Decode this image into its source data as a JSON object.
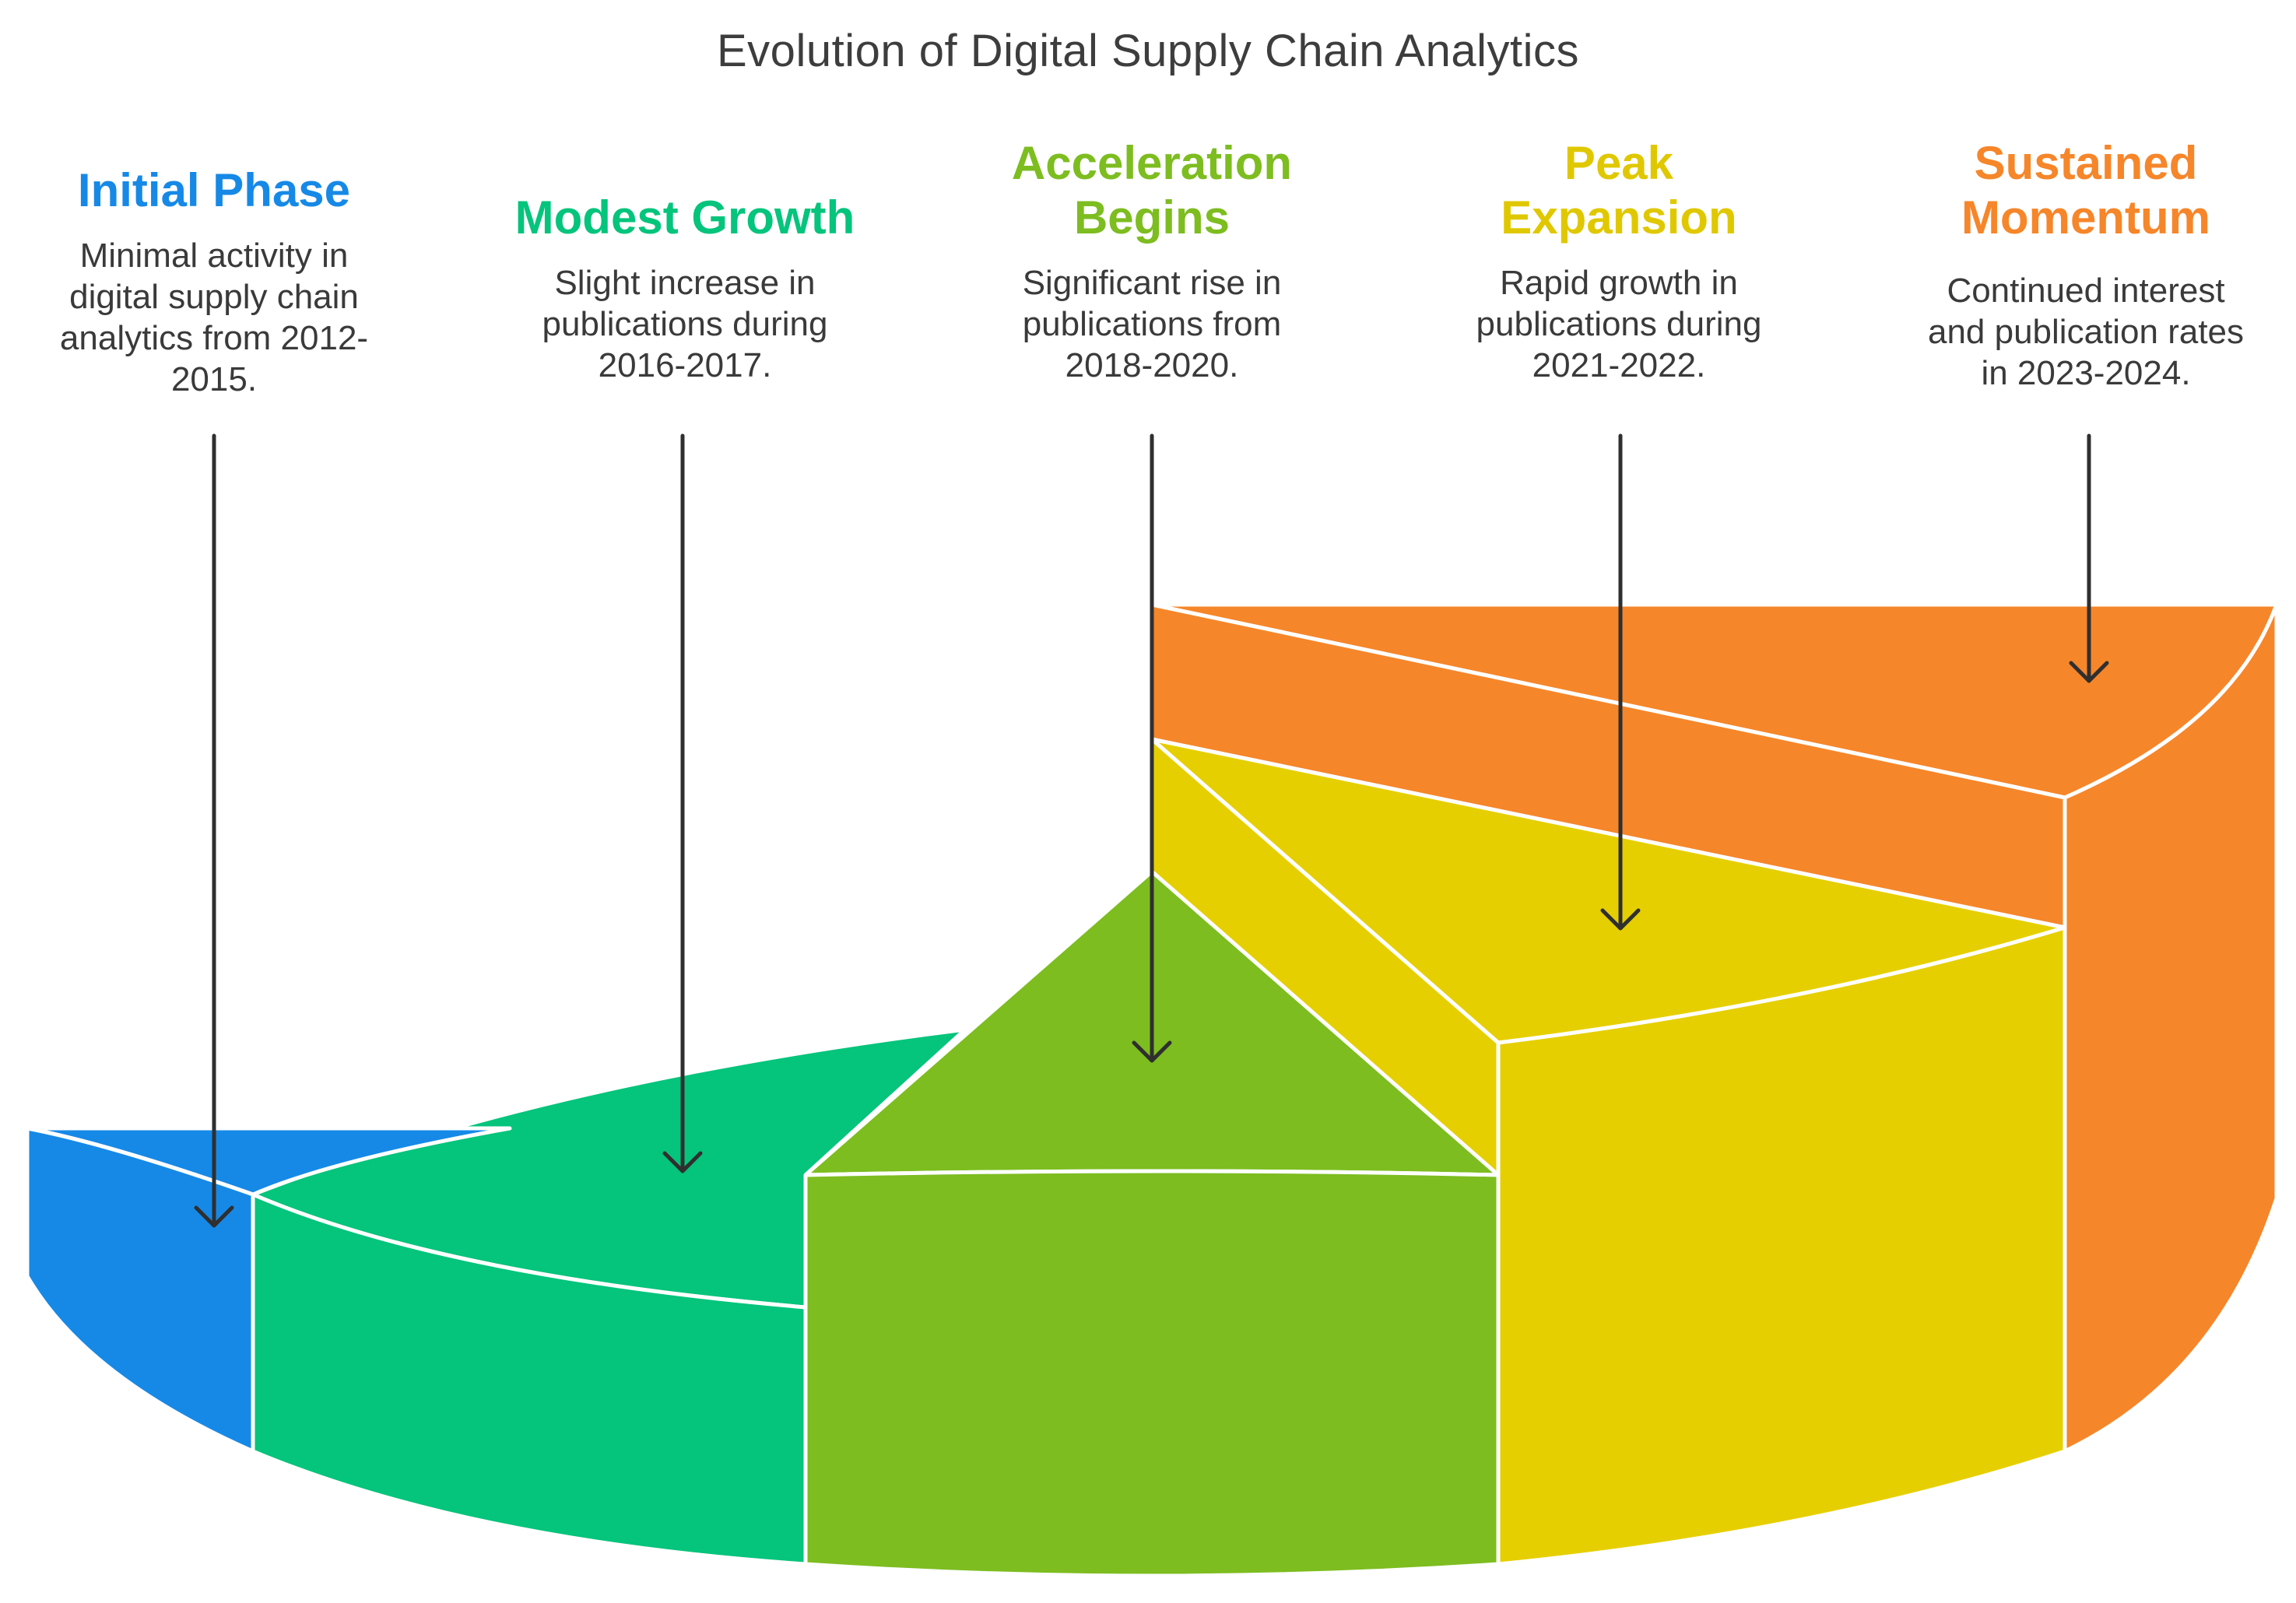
{
  "title": "Evolution of Digital Supply Chain Analytics",
  "stages": [
    {
      "heading": "Initial Phase",
      "description": "Minimal activity in\ndigital supply chain\nanalytics from 2012-\n2015.",
      "color": "#1689e7"
    },
    {
      "heading": "Modest Growth",
      "description": "Slight increase in\npublications during\n2016-2017.",
      "color": "#05c47c"
    },
    {
      "heading": "Acceleration\nBegins",
      "description": "Significant rise in\npublications from\n2018-2020.",
      "color": "#7dbd20"
    },
    {
      "heading": "Peak\nExpansion",
      "description": "Rapid growth in\npublications during\n2021-2022.",
      "color": "#e6cf00"
    },
    {
      "heading": "Sustained\nMomentum",
      "description": "Continued interest\nand publication rates\nin 2023-2024.",
      "color": "#f6862a"
    }
  ],
  "arrow_color": "#2f2f2f",
  "text_color": "#3a3a3a"
}
